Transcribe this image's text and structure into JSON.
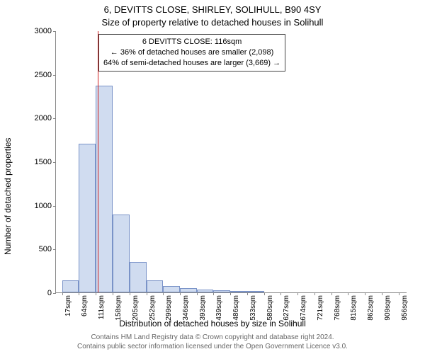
{
  "titles": {
    "line1": "6, DEVITTS CLOSE, SHIRLEY, SOLIHULL, B90 4SY",
    "line2": "Size of property relative to detached houses in Solihull"
  },
  "axes": {
    "ylabel": "Number of detached properties",
    "xlabel": "Distribution of detached houses by size in Solihull",
    "ylim": [
      0,
      3000
    ],
    "yticks": [
      0,
      500,
      1000,
      1500,
      2000,
      2500,
      3000
    ],
    "xticks_sqm": [
      17,
      64,
      111,
      158,
      205,
      252,
      299,
      346,
      393,
      439,
      486,
      533,
      580,
      627,
      674,
      721,
      768,
      815,
      862,
      909,
      956
    ],
    "xtick_suffix": "sqm",
    "xlim": [
      0,
      980
    ]
  },
  "chart": {
    "type": "histogram",
    "bar_color": "#d0dcf0",
    "bar_border_color": "#7a93c8",
    "background_color": "#ffffff",
    "axis_color": "#888888",
    "bars": [
      {
        "x_start": 17,
        "x_end": 64,
        "value": 140
      },
      {
        "x_start": 64,
        "x_end": 111,
        "value": 1700
      },
      {
        "x_start": 111,
        "x_end": 158,
        "value": 2370
      },
      {
        "x_start": 158,
        "x_end": 205,
        "value": 890
      },
      {
        "x_start": 205,
        "x_end": 252,
        "value": 350
      },
      {
        "x_start": 252,
        "x_end": 299,
        "value": 140
      },
      {
        "x_start": 299,
        "x_end": 346,
        "value": 70
      },
      {
        "x_start": 346,
        "x_end": 393,
        "value": 45
      },
      {
        "x_start": 393,
        "x_end": 439,
        "value": 30
      },
      {
        "x_start": 439,
        "x_end": 486,
        "value": 25
      },
      {
        "x_start": 486,
        "x_end": 533,
        "value": 20
      },
      {
        "x_start": 533,
        "x_end": 580,
        "value": 18
      }
    ],
    "marker": {
      "x": 116,
      "color": "#d02020"
    }
  },
  "annotation": {
    "line1": "6 DEVITTS CLOSE: 116sqm",
    "line2": "← 36% of detached houses are smaller (2,098)",
    "line3": "64% of semi-detached houses are larger (3,669) →",
    "border_color": "#444444",
    "bg_color": "#ffffff",
    "font_size": 11
  },
  "footer": {
    "line1": "Contains HM Land Registry data © Crown copyright and database right 2024.",
    "line2": "Contains public sector information licensed under the Open Government Licence v3.0."
  }
}
